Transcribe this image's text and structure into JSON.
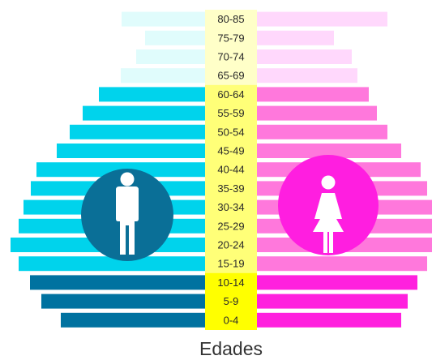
{
  "chart_data": {
    "type": "bar",
    "orientation": "horizontal",
    "layout": "population-pyramid",
    "xlabel": "Edades",
    "grid": false,
    "legend": "none",
    "categories": [
      "80-85",
      "75-79",
      "70-74",
      "65-69",
      "60-64",
      "55-59",
      "50-54",
      "45-49",
      "40-44",
      "35-39",
      "30-34",
      "25-29",
      "20-24",
      "15-19",
      "10-14",
      "5-9",
      "0-4"
    ],
    "series": [
      {
        "side": "left",
        "values": [
          103,
          74,
          85,
          104,
          131,
          151,
          167,
          183,
          208,
          215,
          224,
          230,
          240,
          230,
          216,
          202,
          178
        ],
        "group_colors": [
          "#e0fcfc",
          "#00d3ec",
          "#0072a0"
        ]
      },
      {
        "side": "right",
        "values": [
          161,
          95,
          117,
          124,
          138,
          148,
          161,
          178,
          202,
          210,
          219,
          225,
          237,
          210,
          198,
          186,
          178
        ],
        "group_colors": [
          "#ffd8fc",
          "#ff78dc",
          "#ff20de"
        ]
      }
    ],
    "category_groups": [
      {
        "categories": [
          "80-85",
          "75-79",
          "70-74",
          "65-69"
        ],
        "color_index": 0,
        "label_bg": "#ffffc8"
      },
      {
        "categories": [
          "60-64",
          "55-59",
          "50-54",
          "45-49",
          "40-44",
          "35-39",
          "30-34",
          "25-29",
          "20-24",
          "15-19"
        ],
        "color_index": 1,
        "label_bg": "#ffff78"
      },
      {
        "categories": [
          "10-14",
          "5-9",
          "0-4"
        ],
        "color_index": 2,
        "label_bg": "#ffff00"
      }
    ],
    "icons": [
      {
        "name": "male-icon",
        "circle_color": "#0a6f97",
        "figure_color": "#ffffff"
      },
      {
        "name": "female-icon",
        "circle_color": "#ff1ee0",
        "figure_color": "#ffffff"
      }
    ]
  }
}
